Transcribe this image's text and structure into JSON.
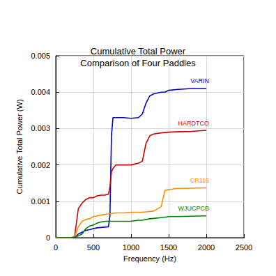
{
  "chart_data": {
    "type": "line",
    "title": "Cumulative Total Power",
    "subtitle": "Comparison of Four Paddles",
    "x_label": "Frequency (Hz)",
    "y_label": "Cumulative Total Power (W)",
    "x": [
      0,
      100,
      200,
      250,
      300,
      350,
      400,
      450,
      500,
      550,
      600,
      650,
      700,
      720,
      740,
      760,
      800,
      900,
      1000,
      1100,
      1150,
      1200,
      1250,
      1300,
      1400,
      1450,
      1500,
      1600,
      1800,
      2000
    ],
    "series": [
      {
        "name": "VARIN",
        "color": "#0000cc",
        "values": [
          0,
          0,
          0,
          0,
          0.0001,
          0.00015,
          0.0002,
          0.00022,
          0.00025,
          0.00027,
          0.00028,
          0.00029,
          0.0003,
          0.0006,
          0.0028,
          0.0033,
          0.0033,
          0.0033,
          0.00328,
          0.0033,
          0.0034,
          0.0037,
          0.0039,
          0.00395,
          0.004,
          0.004,
          0.00405,
          0.00407,
          0.0041,
          0.0041
        ]
      },
      {
        "name": "HARDTCO",
        "color": "#cc0000",
        "values": [
          0,
          0,
          0,
          2e-05,
          0.0008,
          0.00095,
          0.00105,
          0.0011,
          0.0011,
          0.00115,
          0.00117,
          0.00117,
          0.0012,
          0.0014,
          0.0018,
          0.0019,
          0.002,
          0.002,
          0.002,
          0.00205,
          0.0021,
          0.0026,
          0.0028,
          0.00285,
          0.00288,
          0.00289,
          0.0029,
          0.00291,
          0.00292,
          0.00295
        ]
      },
      {
        "name": "CR116",
        "color": "#ff8c00",
        "values": [
          0,
          0,
          0,
          2e-05,
          0.0003,
          0.00045,
          0.0005,
          0.00052,
          0.00058,
          0.0006,
          0.00062,
          0.00064,
          0.00065,
          0.00066,
          0.00066,
          0.00067,
          0.00068,
          0.00068,
          0.0007,
          0.0007,
          0.0007,
          0.00071,
          0.00072,
          0.00073,
          0.00085,
          0.0013,
          0.00132,
          0.00135,
          0.00136,
          0.00137
        ]
      },
      {
        "name": "WJUCPCB",
        "color": "#008000",
        "values": [
          0,
          0,
          0,
          2e-05,
          5e-05,
          0.0001,
          0.00025,
          0.00032,
          0.00035,
          0.0004,
          0.00043,
          0.00045,
          0.00045,
          0.00045,
          0.00045,
          0.00045,
          0.00045,
          0.00045,
          0.00045,
          0.00048,
          0.00048,
          0.0005,
          0.00052,
          0.00053,
          0.00055,
          0.00056,
          0.00058,
          0.00058,
          0.00059,
          0.0006
        ]
      }
    ],
    "xlim": [
      0,
      2500
    ],
    "xticks": [
      0,
      500,
      1000,
      1500,
      2000,
      2500
    ],
    "ylim": [
      0,
      0.005
    ],
    "yticks": [
      0,
      0.001,
      0.002,
      0.003,
      0.004,
      0.005
    ],
    "grid": true
  }
}
